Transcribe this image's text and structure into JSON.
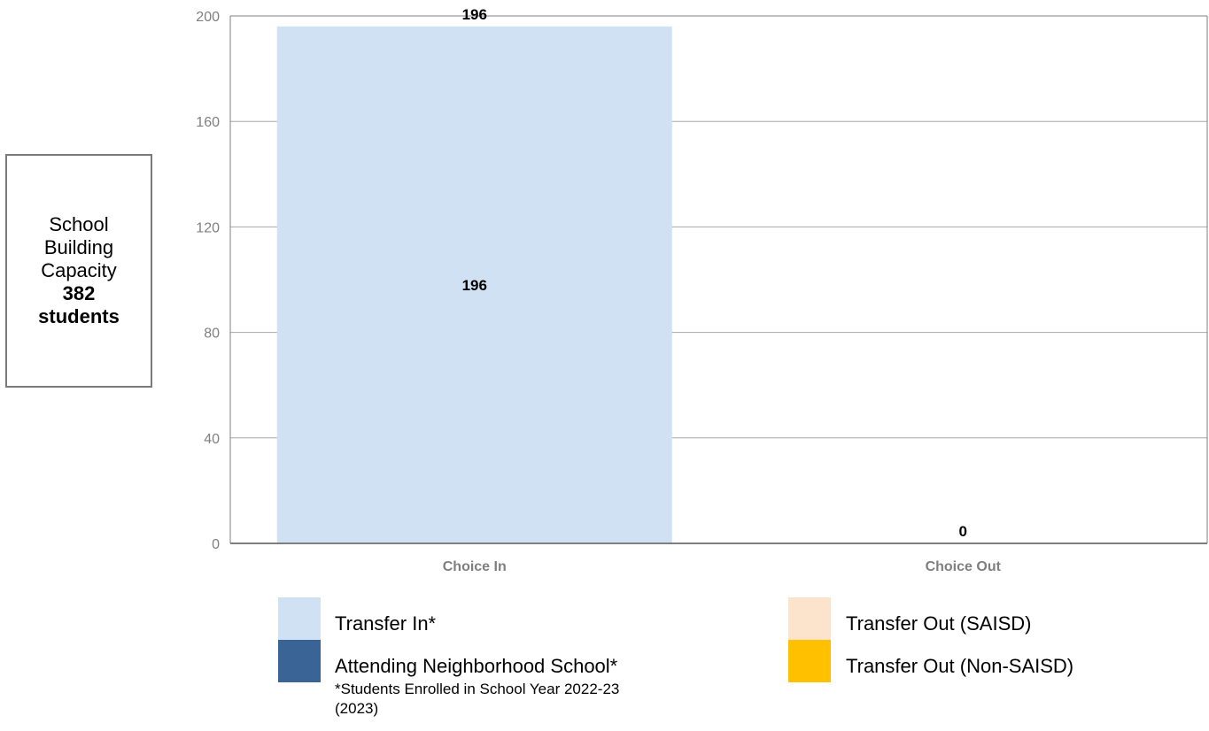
{
  "capacity_box": {
    "line1": "School",
    "line2": "Building",
    "line3": "Capacity",
    "value": "382",
    "unit": "students"
  },
  "chart_data": {
    "type": "bar",
    "stacked": true,
    "categories": [
      "Choice In",
      "Choice Out"
    ],
    "series": [
      {
        "name": "Transfer In*",
        "values": [
          196,
          0
        ],
        "color": "#cfe1f2"
      },
      {
        "name": "Attending Neighborhood School*",
        "values": [
          0,
          0
        ],
        "color": "#3a6496"
      },
      {
        "name": "Transfer Out (SAISD)",
        "values": [
          0,
          0
        ],
        "color": "#fbe3cc"
      },
      {
        "name": "Transfer Out (Non-SAISD)",
        "values": [
          0,
          0
        ],
        "color": "#ffc000"
      }
    ],
    "totals": [
      196,
      0
    ],
    "segment_labels": [
      [
        "196"
      ],
      []
    ],
    "total_labels": [
      "196",
      "0"
    ],
    "ylim": [
      0,
      200
    ],
    "yticks": [
      "0",
      "40",
      "80",
      "120",
      "160",
      "200"
    ],
    "grid": true,
    "legend_placement": "bottom"
  },
  "legend": {
    "items": [
      {
        "label": "Transfer In*",
        "color": "#cfe1f2"
      },
      {
        "label": "Attending Neighborhood School*",
        "color": "#3a6496"
      },
      {
        "label": "Transfer Out (SAISD)",
        "color": "#fbe3cc"
      },
      {
        "label": "Transfer Out (Non-SAISD)",
        "color": "#ffc000"
      }
    ],
    "footnote_line1": "*Students Enrolled in School Year 2022-23",
    "footnote_line2": "(2023)"
  }
}
